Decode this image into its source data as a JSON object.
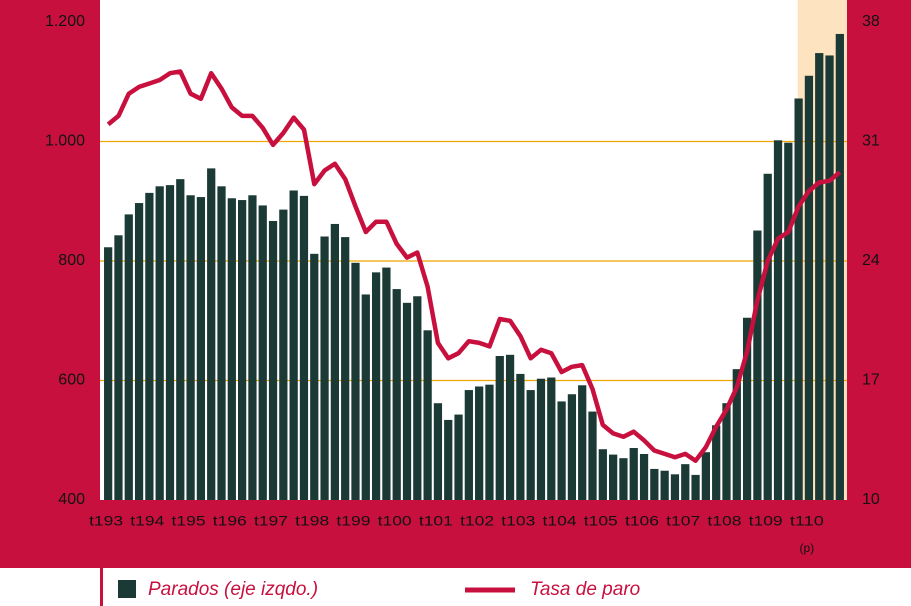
{
  "chart_data": {
    "type": "bar_line",
    "categories": [
      "t193",
      null,
      null,
      null,
      "t194",
      null,
      null,
      null,
      "t195",
      null,
      null,
      null,
      "t196",
      null,
      null,
      null,
      "t197",
      null,
      null,
      null,
      "t198",
      null,
      null,
      null,
      "t199",
      null,
      null,
      null,
      "t100",
      null,
      null,
      null,
      "t101",
      null,
      null,
      null,
      "t102",
      null,
      null,
      null,
      "t103",
      null,
      null,
      null,
      "t104",
      null,
      null,
      null,
      "t105",
      null,
      null,
      null,
      "t106",
      null,
      null,
      null,
      "t107",
      null,
      null,
      null,
      "t108",
      null,
      null,
      null,
      "t109",
      null,
      null,
      null,
      "t110",
      null,
      null,
      null
    ],
    "annotation": "(p)",
    "series": [
      {
        "name": "Parados (eje izqdo.)",
        "type": "bar",
        "color": "#1c3a35",
        "values": [
          823,
          843,
          878,
          897,
          914,
          925,
          927,
          937,
          910,
          907,
          955,
          925,
          905,
          902,
          910,
          893,
          867,
          886,
          918,
          909,
          812,
          841,
          862,
          840,
          797,
          744,
          781,
          789,
          753,
          730,
          741,
          684,
          562,
          534,
          543,
          584,
          590,
          593,
          641,
          643,
          611,
          584,
          603,
          605,
          565,
          577,
          592,
          548,
          485,
          476,
          470,
          487,
          477,
          452,
          449,
          443,
          460,
          442,
          480,
          525,
          562,
          619,
          705,
          851,
          946,
          1002,
          998,
          1072,
          1110,
          1148,
          1144,
          1180
        ]
      },
      {
        "name": "Tasa de paro",
        "type": "line",
        "axis": "y2",
        "color": "#c8103f",
        "values": [
          32.0,
          32.5,
          33.8,
          34.2,
          34.4,
          34.6,
          35.0,
          35.1,
          33.8,
          33.5,
          35.0,
          34.1,
          33.0,
          32.5,
          32.5,
          31.8,
          30.8,
          31.5,
          32.4,
          31.7,
          28.5,
          29.3,
          29.7,
          28.8,
          27.2,
          25.7,
          26.3,
          26.3,
          25.0,
          24.2,
          24.5,
          22.5,
          19.2,
          18.3,
          18.6,
          19.3,
          19.2,
          19.0,
          20.6,
          20.5,
          19.6,
          18.3,
          18.8,
          18.6,
          17.5,
          17.8,
          17.9,
          16.5,
          14.4,
          13.9,
          13.7,
          14.0,
          13.5,
          12.9,
          12.7,
          12.5,
          12.7,
          12.3,
          13.1,
          14.3,
          15.3,
          16.6,
          18.7,
          21.7,
          24.0,
          25.3,
          25.7,
          27.2,
          28.1,
          28.6,
          28.7,
          29.2
        ]
      }
    ],
    "ylim": [
      400,
      1200
    ],
    "yticks": [
      400,
      600,
      800,
      {
        "value": 1000,
        "label": "1.000"
      },
      {
        "value": 1200,
        "label": "1.200"
      }
    ],
    "y2lim": [
      10,
      38
    ],
    "y2ticks": [
      10,
      17,
      24,
      31,
      38
    ],
    "grid": true,
    "grid_color": "#f0a500",
    "highlight_color": "#fde3bf"
  }
}
